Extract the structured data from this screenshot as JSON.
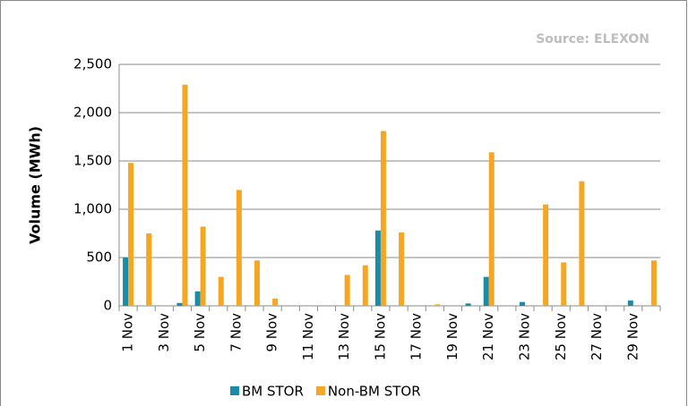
{
  "chart_data": {
    "type": "bar",
    "annotation": "Source: ELEXON",
    "y_label": "Volume (MWh)",
    "categories": [
      "1 Nov",
      null,
      "3 Nov",
      null,
      "5 Nov",
      null,
      "7 Nov",
      null,
      "9 Nov",
      null,
      "11 Nov",
      null,
      "13 Nov",
      null,
      "15 Nov",
      null,
      "17 Nov",
      null,
      "19 Nov",
      null,
      "21 Nov",
      null,
      "23 Nov",
      null,
      "25 Nov",
      null,
      "27 Nov",
      null,
      "29 Nov",
      null
    ],
    "series": [
      {
        "name": "BM STOR",
        "color": "#1b8ba6",
        "values": [
          500,
          0,
          0,
          30,
          150,
          0,
          0,
          0,
          0,
          0,
          0,
          0,
          0,
          0,
          780,
          0,
          0,
          0,
          0,
          25,
          300,
          0,
          40,
          0,
          0,
          0,
          0,
          0,
          55,
          0
        ]
      },
      {
        "name": "Non-BM STOR",
        "color": "#f5a623",
        "values": [
          1480,
          750,
          0,
          2290,
          820,
          300,
          1200,
          470,
          75,
          0,
          0,
          0,
          320,
          420,
          1810,
          760,
          0,
          15,
          0,
          0,
          1590,
          0,
          0,
          1050,
          450,
          1290,
          0,
          0,
          0,
          470
        ]
      }
    ],
    "ylim": [
      0,
      2500
    ],
    "yticks": [
      0,
      500,
      {
        "value": 1000,
        "label": "1,000"
      },
      {
        "value": 1500,
        "label": "1,500"
      },
      {
        "value": 2000,
        "label": "2,000"
      },
      {
        "value": 2500,
        "label": "2,500"
      }
    ],
    "grid": true
  }
}
